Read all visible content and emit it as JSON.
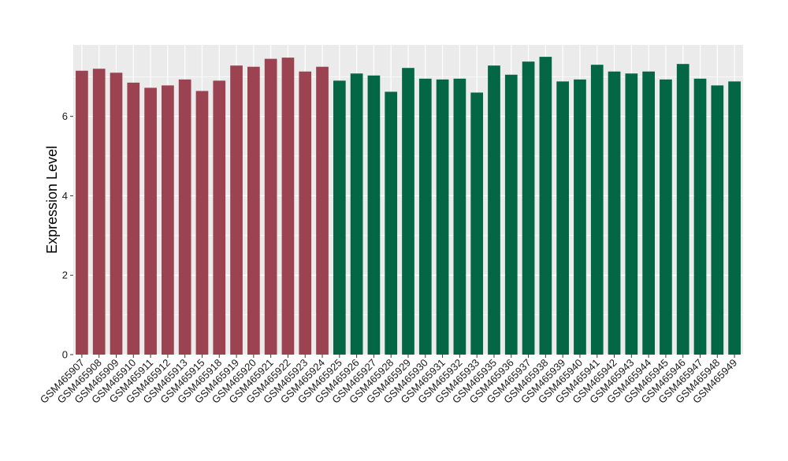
{
  "chart_data": {
    "type": "bar",
    "ylabel": "Expression Level",
    "xlabel": "",
    "ylim": [
      0,
      7.8
    ],
    "yticks": [
      0,
      2,
      4,
      6
    ],
    "grid": true,
    "legend": "none",
    "categories": [
      "GSM465907",
      "GSM465908",
      "GSM465909",
      "GSM465910",
      "GSM465911",
      "GSM465912",
      "GSM465913",
      "GSM465915",
      "GSM465918",
      "GSM465919",
      "GSM465920",
      "GSM465921",
      "GSM465922",
      "GSM465923",
      "GSM465924",
      "GSM465925",
      "GSM465926",
      "GSM465927",
      "GSM465928",
      "GSM465929",
      "GSM465930",
      "GSM465931",
      "GSM465932",
      "GSM465933",
      "GSM465935",
      "GSM465936",
      "GSM465937",
      "GSM465938",
      "GSM465939",
      "GSM465940",
      "GSM465941",
      "GSM465942",
      "GSM465943",
      "GSM465944",
      "GSM465945",
      "GSM465946",
      "GSM465947",
      "GSM465948",
      "GSM465949"
    ],
    "values": [
      7.15,
      7.2,
      7.1,
      6.85,
      6.72,
      6.78,
      6.93,
      6.64,
      6.9,
      7.28,
      7.25,
      7.45,
      7.48,
      7.13,
      7.25,
      6.9,
      7.08,
      7.03,
      6.62,
      7.22,
      6.95,
      6.93,
      6.95,
      6.6,
      7.28,
      7.05,
      7.38,
      7.5,
      6.88,
      6.93,
      7.3,
      7.13,
      7.08,
      7.13,
      6.93,
      7.32,
      6.95,
      6.78,
      6.88
    ],
    "group_sizes": [
      15,
      24
    ],
    "colors": [
      "#9B4350",
      "#036645"
    ],
    "panel_background": "#EBEBEB",
    "grid_color": "#FFFFFF"
  }
}
